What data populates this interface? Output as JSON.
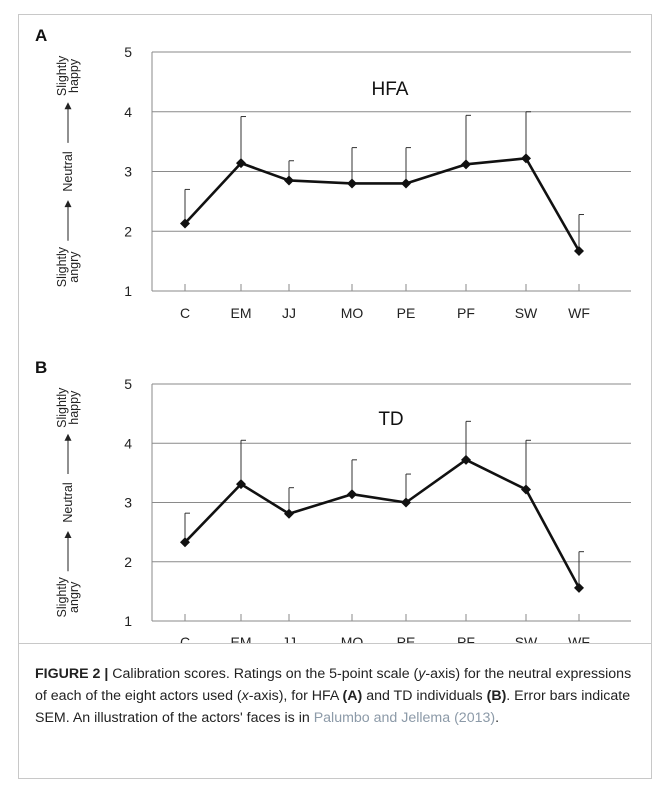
{
  "chart_data": [
    {
      "type": "line",
      "panel": "A",
      "title": "HFA",
      "categories": [
        "C",
        "EM",
        "JJ",
        "MO",
        "PE",
        "PF",
        "SW",
        "WF"
      ],
      "values": [
        2.13,
        3.14,
        2.85,
        2.8,
        2.8,
        3.12,
        3.22,
        1.67
      ],
      "error_upper": [
        2.7,
        3.92,
        3.18,
        3.4,
        3.4,
        3.94,
        4.0,
        2.28
      ],
      "ylim": [
        1,
        5
      ],
      "yticks": [
        "1",
        "2",
        "3",
        "4",
        "5"
      ],
      "ylabel_parts": [
        "Slightly angry",
        "Neutral",
        "Slightly happy"
      ],
      "grid": true,
      "marker": "diamond",
      "line_color": "#111111"
    },
    {
      "type": "line",
      "panel": "B",
      "title": "TD",
      "categories": [
        "C",
        "EM",
        "JJ",
        "MO",
        "PE",
        "PF",
        "SW",
        "WF"
      ],
      "values": [
        2.33,
        3.31,
        2.81,
        3.14,
        3.0,
        3.72,
        3.22,
        1.56
      ],
      "error_upper": [
        2.82,
        4.05,
        3.25,
        3.72,
        3.48,
        4.37,
        4.05,
        2.17
      ],
      "ylim": [
        1,
        5
      ],
      "yticks": [
        "1",
        "2",
        "3",
        "4",
        "5"
      ],
      "ylabel_parts": [
        "Slightly angry",
        "Neutral",
        "Slightly happy"
      ],
      "grid": true,
      "marker": "diamond",
      "line_color": "#111111"
    }
  ],
  "caption": {
    "lead": "FIGURE 2 |",
    "text1": " Calibration scores. Ratings on the 5-point scale (",
    "y_italic": "y",
    "text2": "-axis) for the neutral expressions of each of the eight actors used (",
    "x_italic": "x",
    "text3": "-axis), for HFA ",
    "bold_a": "(A)",
    "text4": " and TD individuals ",
    "bold_b": "(B)",
    "text5": ". Error bars indicate SEM. An illustration of the actors' faces is in ",
    "reference": "Palumbo and Jellema (2013)",
    "text6": "."
  },
  "colors": {
    "grid": "#8a8a8a",
    "line": "#111111",
    "reference": "#8c9aa8",
    "border": "#c8c8c8"
  }
}
